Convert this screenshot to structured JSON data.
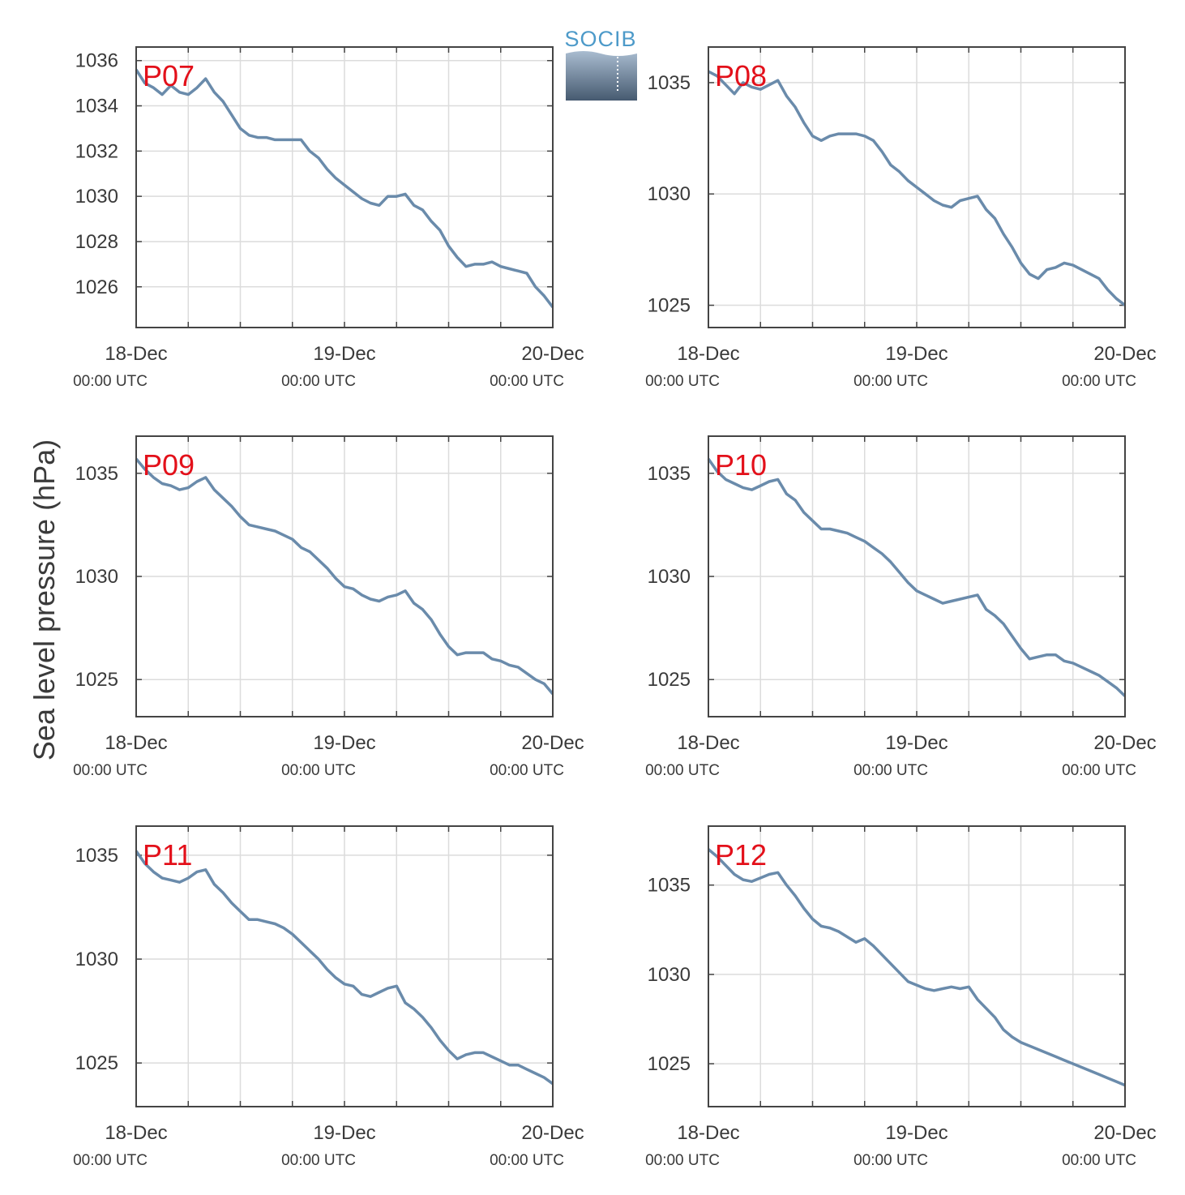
{
  "figure": {
    "ylabel": "Sea level pressure (hPa)",
    "logo_text": "SOCIB",
    "colors": {
      "line": "#6a8bab",
      "panel_label": "#e3101a",
      "grid": "#dcdcdc",
      "axis": "#444444"
    }
  },
  "chart_data": [
    {
      "type": "line",
      "title": "P07",
      "x_tick_labels": [
        [
          "18-Dec",
          "00:00 UTC"
        ],
        [
          "19-Dec",
          "00:00 UTC"
        ],
        [
          "20-Dec",
          "00:00 UTC"
        ]
      ],
      "xlim": [
        0,
        48
      ],
      "ylim": [
        1024.2,
        1036.6
      ],
      "yticks": [
        1026,
        1028,
        1030,
        1032,
        1034,
        1036
      ],
      "grid": true,
      "x": [
        0,
        1,
        2,
        3,
        4,
        5,
        6,
        7,
        8,
        9,
        10,
        11,
        12,
        13,
        14,
        15,
        16,
        17,
        18,
        19,
        20,
        21,
        22,
        23,
        24,
        25,
        26,
        27,
        28,
        29,
        30,
        31,
        32,
        33,
        34,
        35,
        36,
        37,
        38,
        39,
        40,
        41,
        42,
        43,
        44,
        45,
        46,
        47,
        48
      ],
      "y": [
        1035.6,
        1035.0,
        1034.8,
        1034.5,
        1034.9,
        1034.6,
        1034.5,
        1034.8,
        1035.2,
        1034.6,
        1034.2,
        1033.6,
        1033.0,
        1032.7,
        1032.6,
        1032.6,
        1032.5,
        1032.5,
        1032.5,
        1032.5,
        1032.0,
        1031.7,
        1031.2,
        1030.8,
        1030.5,
        1030.2,
        1029.9,
        1029.7,
        1029.6,
        1030.0,
        1030.0,
        1030.1,
        1029.6,
        1029.4,
        1028.9,
        1028.5,
        1027.8,
        1027.3,
        1026.9,
        1027.0,
        1027.0,
        1027.1,
        1026.9,
        1026.8,
        1026.7,
        1026.6,
        1026.0,
        1025.6,
        1025.1
      ]
    },
    {
      "type": "line",
      "title": "P08",
      "x_tick_labels": [
        [
          "18-Dec",
          "00:00 UTC"
        ],
        [
          "19-Dec",
          "00:00 UTC"
        ],
        [
          "20-Dec",
          "00:00 UTC"
        ]
      ],
      "xlim": [
        0,
        48
      ],
      "ylim": [
        1024.0,
        1036.6
      ],
      "yticks": [
        1025,
        1030,
        1035
      ],
      "grid": true,
      "x": [
        0,
        1,
        2,
        3,
        4,
        5,
        6,
        7,
        8,
        9,
        10,
        11,
        12,
        13,
        14,
        15,
        16,
        17,
        18,
        19,
        20,
        21,
        22,
        23,
        24,
        25,
        26,
        27,
        28,
        29,
        30,
        31,
        32,
        33,
        34,
        35,
        36,
        37,
        38,
        39,
        40,
        41,
        42,
        43,
        44,
        45,
        46,
        47,
        48
      ],
      "y": [
        1035.5,
        1035.3,
        1034.9,
        1034.5,
        1035.0,
        1034.8,
        1034.7,
        1034.9,
        1035.1,
        1034.4,
        1033.9,
        1033.2,
        1032.6,
        1032.4,
        1032.6,
        1032.7,
        1032.7,
        1032.7,
        1032.6,
        1032.4,
        1031.9,
        1031.3,
        1031.0,
        1030.6,
        1030.3,
        1030.0,
        1029.7,
        1029.5,
        1029.4,
        1029.7,
        1029.8,
        1029.9,
        1029.3,
        1028.9,
        1028.2,
        1027.6,
        1026.9,
        1026.4,
        1026.2,
        1026.6,
        1026.7,
        1026.9,
        1026.8,
        1026.6,
        1026.4,
        1026.2,
        1025.7,
        1025.3,
        1025.0
      ]
    },
    {
      "type": "line",
      "title": "P09",
      "x_tick_labels": [
        [
          "18-Dec",
          "00:00 UTC"
        ],
        [
          "19-Dec",
          "00:00 UTC"
        ],
        [
          "20-Dec",
          "00:00 UTC"
        ]
      ],
      "xlim": [
        0,
        48
      ],
      "ylim": [
        1023.2,
        1036.8
      ],
      "yticks": [
        1025,
        1030,
        1035
      ],
      "grid": true,
      "x": [
        0,
        1,
        2,
        3,
        4,
        5,
        6,
        7,
        8,
        9,
        10,
        11,
        12,
        13,
        14,
        15,
        16,
        17,
        18,
        19,
        20,
        21,
        22,
        23,
        24,
        25,
        26,
        27,
        28,
        29,
        30,
        31,
        32,
        33,
        34,
        35,
        36,
        37,
        38,
        39,
        40,
        41,
        42,
        43,
        44,
        45,
        46,
        47,
        48
      ],
      "y": [
        1035.7,
        1035.2,
        1034.8,
        1034.5,
        1034.4,
        1034.2,
        1034.3,
        1034.6,
        1034.8,
        1034.2,
        1033.8,
        1033.4,
        1032.9,
        1032.5,
        1032.4,
        1032.3,
        1032.2,
        1032.0,
        1031.8,
        1031.4,
        1031.2,
        1030.8,
        1030.4,
        1029.9,
        1029.5,
        1029.4,
        1029.1,
        1028.9,
        1028.8,
        1029.0,
        1029.1,
        1029.3,
        1028.7,
        1028.4,
        1027.9,
        1027.2,
        1026.6,
        1026.2,
        1026.3,
        1026.3,
        1026.3,
        1026.0,
        1025.9,
        1025.7,
        1025.6,
        1025.3,
        1025.0,
        1024.8,
        1024.3
      ]
    },
    {
      "type": "line",
      "title": "P10",
      "x_tick_labels": [
        [
          "18-Dec",
          "00:00 UTC"
        ],
        [
          "19-Dec",
          "00:00 UTC"
        ],
        [
          "20-Dec",
          "00:00 UTC"
        ]
      ],
      "xlim": [
        0,
        48
      ],
      "ylim": [
        1023.2,
        1036.8
      ],
      "yticks": [
        1025,
        1030,
        1035
      ],
      "grid": true,
      "x": [
        0,
        1,
        2,
        3,
        4,
        5,
        6,
        7,
        8,
        9,
        10,
        11,
        12,
        13,
        14,
        15,
        16,
        17,
        18,
        19,
        20,
        21,
        22,
        23,
        24,
        25,
        26,
        27,
        28,
        29,
        30,
        31,
        32,
        33,
        34,
        35,
        36,
        37,
        38,
        39,
        40,
        41,
        42,
        43,
        44,
        45,
        46,
        47,
        48
      ],
      "y": [
        1035.7,
        1035.1,
        1034.7,
        1034.5,
        1034.3,
        1034.2,
        1034.4,
        1034.6,
        1034.7,
        1034.0,
        1033.7,
        1033.1,
        1032.7,
        1032.3,
        1032.3,
        1032.2,
        1032.1,
        1031.9,
        1031.7,
        1031.4,
        1031.1,
        1030.7,
        1030.2,
        1029.7,
        1029.3,
        1029.1,
        1028.9,
        1028.7,
        1028.8,
        1028.9,
        1029.0,
        1029.1,
        1028.4,
        1028.1,
        1027.7,
        1027.1,
        1026.5,
        1026.0,
        1026.1,
        1026.2,
        1026.2,
        1025.9,
        1025.8,
        1025.6,
        1025.4,
        1025.2,
        1024.9,
        1024.6,
        1024.2
      ]
    },
    {
      "type": "line",
      "title": "P11",
      "x_tick_labels": [
        [
          "18-Dec",
          "00:00 UTC"
        ],
        [
          "19-Dec",
          "00:00 UTC"
        ],
        [
          "20-Dec",
          "00:00 UTC"
        ]
      ],
      "xlim": [
        0,
        48
      ],
      "ylim": [
        1022.9,
        1036.4
      ],
      "yticks": [
        1025,
        1030,
        1035
      ],
      "grid": true,
      "x": [
        0,
        1,
        2,
        3,
        4,
        5,
        6,
        7,
        8,
        9,
        10,
        11,
        12,
        13,
        14,
        15,
        16,
        17,
        18,
        19,
        20,
        21,
        22,
        23,
        24,
        25,
        26,
        27,
        28,
        29,
        30,
        31,
        32,
        33,
        34,
        35,
        36,
        37,
        38,
        39,
        40,
        41,
        42,
        43,
        44,
        45,
        46,
        47,
        48
      ],
      "y": [
        1035.2,
        1034.6,
        1034.2,
        1033.9,
        1033.8,
        1033.7,
        1033.9,
        1034.2,
        1034.3,
        1033.6,
        1033.2,
        1032.7,
        1032.3,
        1031.9,
        1031.9,
        1031.8,
        1031.7,
        1031.5,
        1031.2,
        1030.8,
        1030.4,
        1030.0,
        1029.5,
        1029.1,
        1028.8,
        1028.7,
        1028.3,
        1028.2,
        1028.4,
        1028.6,
        1028.7,
        1027.9,
        1027.6,
        1027.2,
        1026.7,
        1026.1,
        1025.6,
        1025.2,
        1025.4,
        1025.5,
        1025.5,
        1025.3,
        1025.1,
        1024.9,
        1024.9,
        1024.7,
        1024.5,
        1024.3,
        1024.0
      ]
    },
    {
      "type": "line",
      "title": "P12",
      "x_tick_labels": [
        [
          "18-Dec",
          "00:00 UTC"
        ],
        [
          "19-Dec",
          "00:00 UTC"
        ],
        [
          "20-Dec",
          "00:00 UTC"
        ]
      ],
      "xlim": [
        0,
        48
      ],
      "ylim": [
        1022.6,
        1038.3
      ],
      "yticks": [
        1025,
        1030,
        1035
      ],
      "grid": true,
      "x": [
        0,
        1,
        2,
        3,
        4,
        5,
        6,
        7,
        8,
        9,
        10,
        11,
        12,
        13,
        14,
        15,
        16,
        17,
        18,
        19,
        20,
        21,
        22,
        23,
        24,
        25,
        26,
        27,
        28,
        29,
        30,
        31,
        32,
        33,
        34,
        35,
        36,
        37,
        38,
        39,
        40,
        41,
        42,
        43,
        44,
        45,
        46,
        47,
        48
      ],
      "y": [
        1037.0,
        1036.6,
        1036.1,
        1035.6,
        1035.3,
        1035.2,
        1035.4,
        1035.6,
        1035.7,
        1035.0,
        1034.4,
        1033.7,
        1033.1,
        1032.7,
        1032.6,
        1032.4,
        1032.1,
        1031.8,
        1032.0,
        1031.6,
        1031.1,
        1030.6,
        1030.1,
        1029.6,
        1029.4,
        1029.2,
        1029.1,
        1029.2,
        1029.3,
        1029.2,
        1029.3,
        1028.6,
        1028.1,
        1027.6,
        1026.9,
        1026.5,
        1026.2,
        1026.0,
        1025.8,
        1025.6,
        1025.4,
        1025.2,
        1025.0,
        1024.8,
        1024.6,
        1024.4,
        1024.2,
        1024.0,
        1023.8
      ]
    }
  ]
}
